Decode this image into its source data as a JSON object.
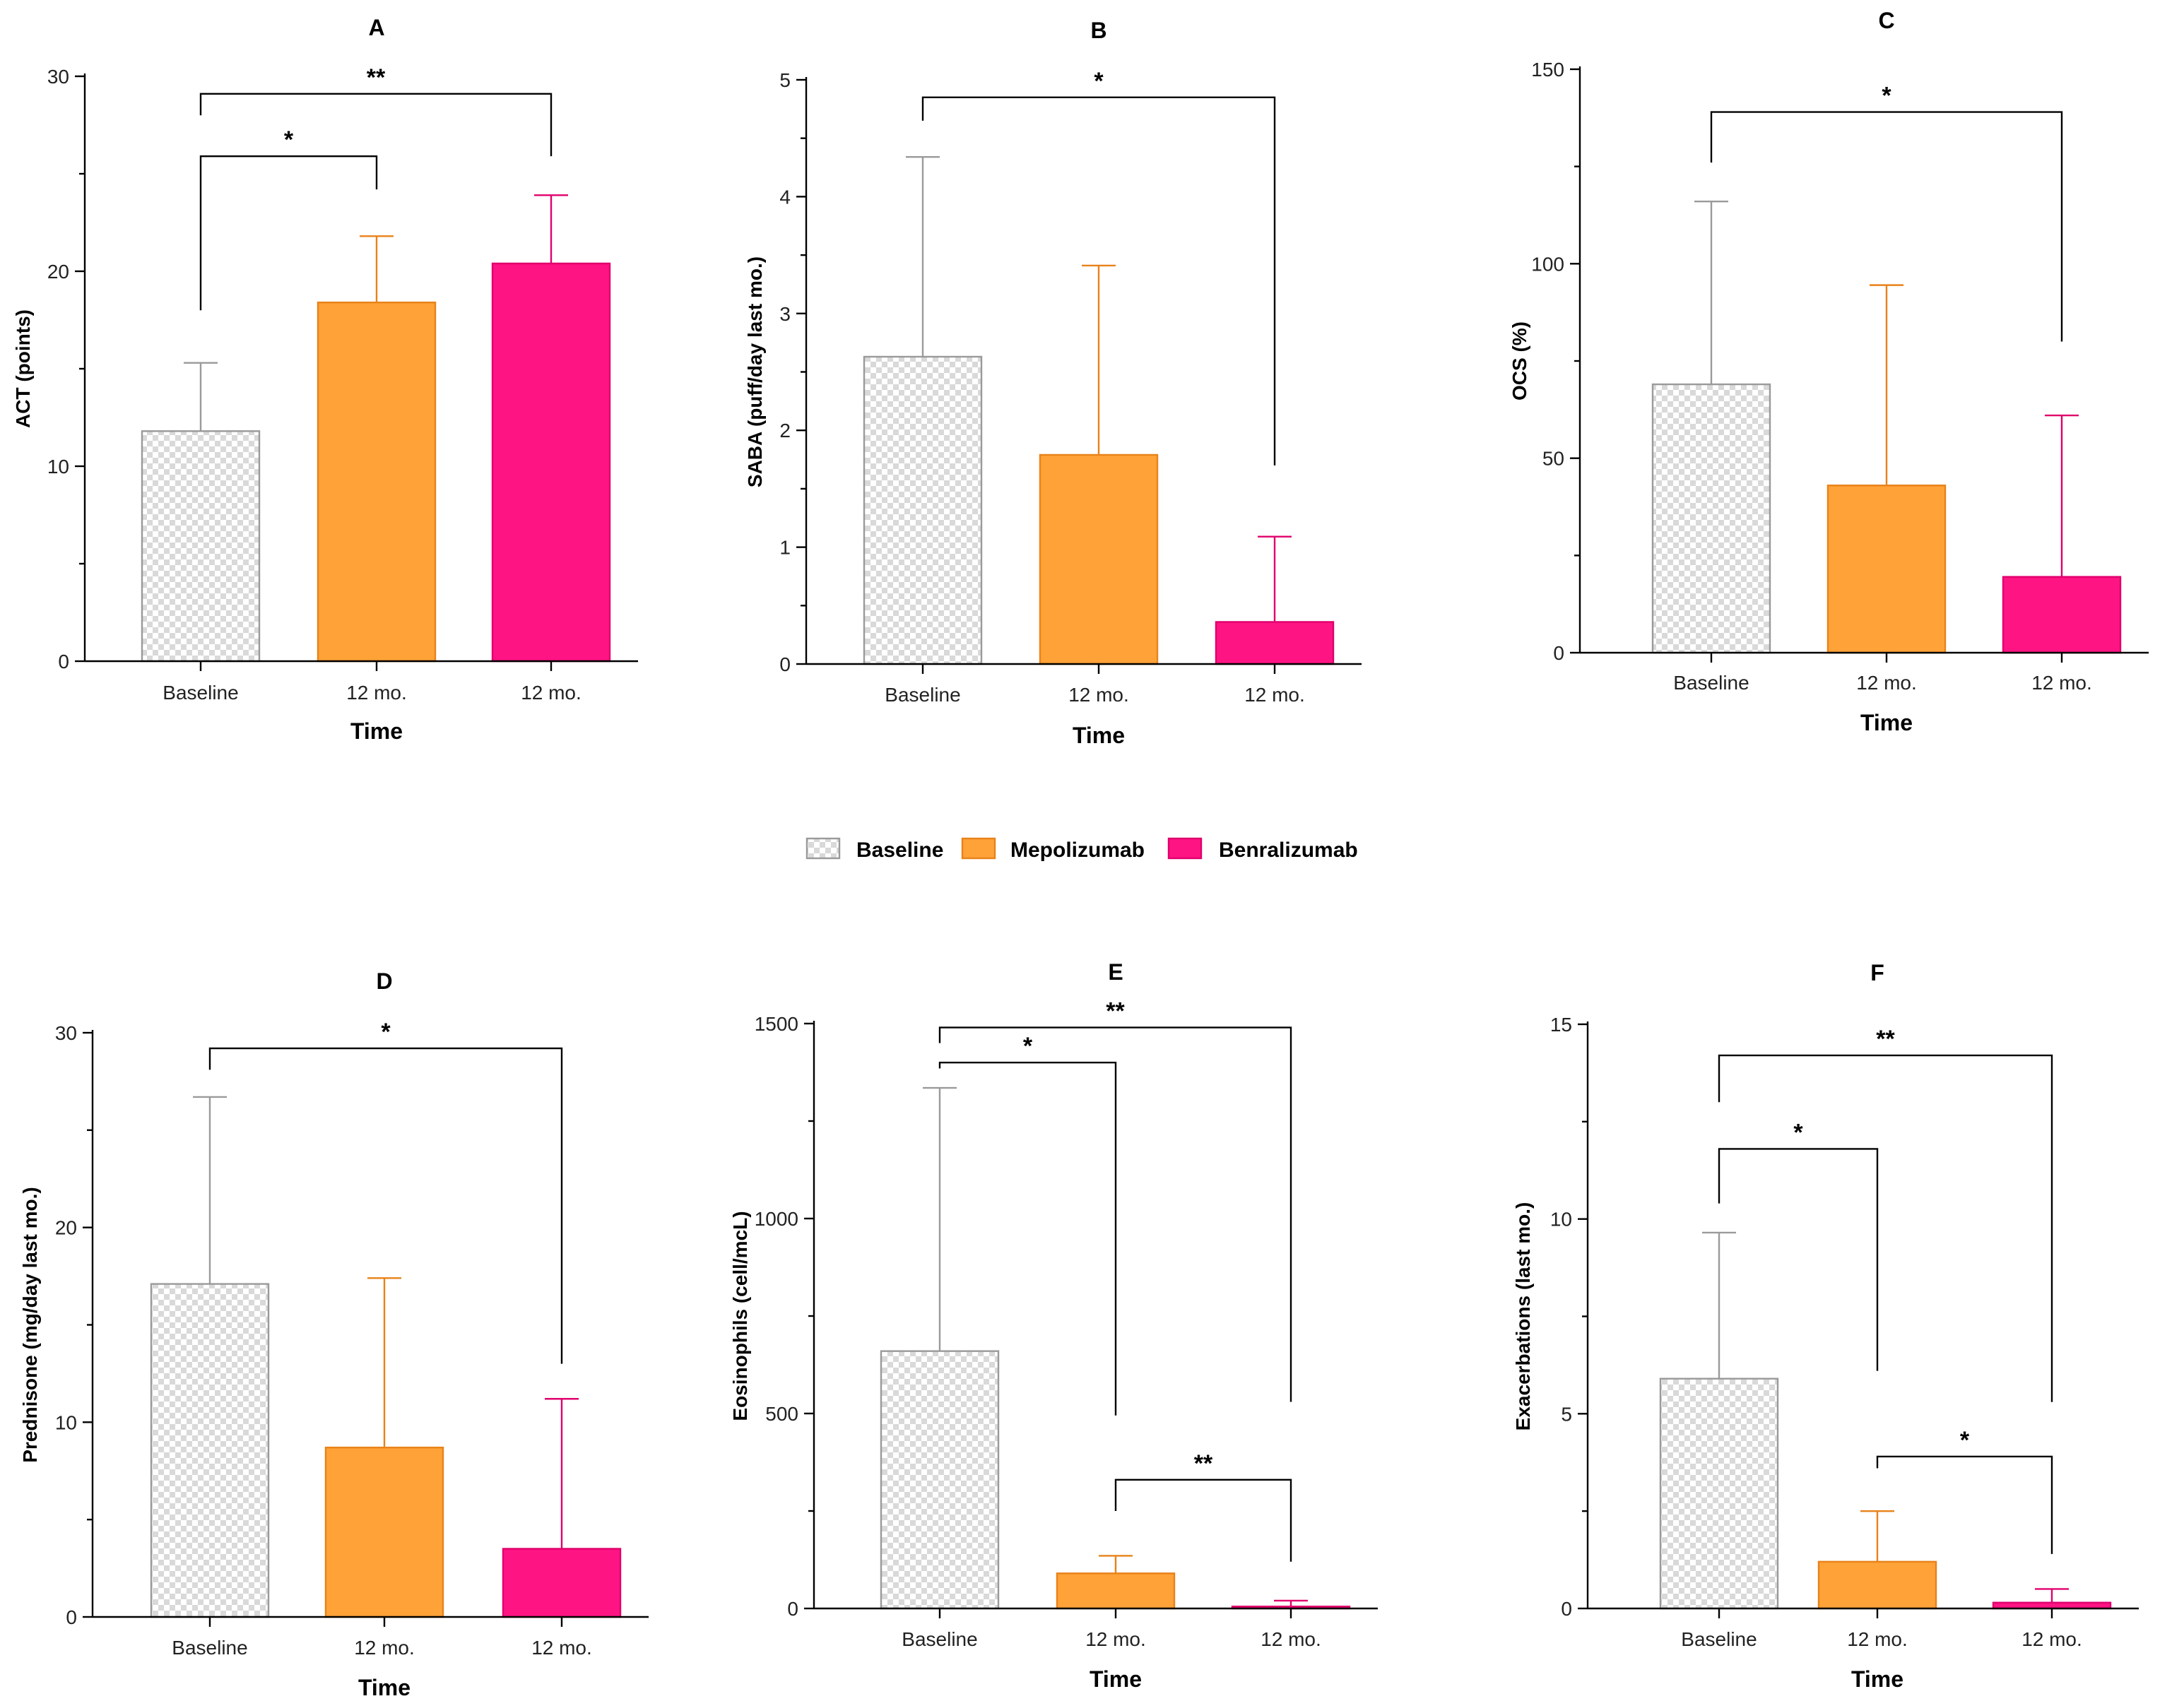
{
  "legend": [
    {
      "label": "Baseline",
      "key": "baseline"
    },
    {
      "label": "Mepolizumab",
      "key": "mepolizumab"
    },
    {
      "label": "Benralizumab",
      "key": "benralizumab"
    }
  ],
  "colors": {
    "baseline_fill": "#e6e6e6",
    "baseline_stroke": "#9a9a9a",
    "mepolizumab_fill": "#ffa238",
    "mepolizumab_stroke": "#e8821a",
    "benralizumab_fill": "#ff1483",
    "benralizumab_stroke": "#e0006c"
  },
  "chart_data": [
    {
      "type": "bar",
      "title": "A",
      "xlabel": "Time",
      "ylabel": "ACT (points)",
      "categories": [
        "Baseline",
        "12 mo.",
        "12 mo."
      ],
      "series_keys": [
        "baseline",
        "mepolizumab",
        "benralizumab"
      ],
      "values": [
        11.8,
        18.4,
        20.4
      ],
      "errors": [
        3.5,
        3.4,
        3.5
      ],
      "ylim": [
        0,
        30
      ],
      "major_ticks": [
        0,
        10,
        20,
        30
      ],
      "minor_ticks": [
        5,
        15,
        25
      ],
      "significance": [
        {
          "from": 0,
          "to": 1,
          "label": "*",
          "y": 25.9,
          "drop_left": 18.0,
          "drop_right": 24.2
        },
        {
          "from": 0,
          "to": 2,
          "label": "**",
          "y": 29.1,
          "drop_left": 28.0,
          "drop_right": 25.9
        }
      ]
    },
    {
      "type": "bar",
      "title": "B",
      "xlabel": "Time",
      "ylabel": "SABA (puff/day last mo.)",
      "categories": [
        "Baseline",
        "12 mo.",
        "12 mo."
      ],
      "series_keys": [
        "baseline",
        "mepolizumab",
        "benralizumab"
      ],
      "values": [
        2.63,
        1.79,
        0.36
      ],
      "errors": [
        1.71,
        1.62,
        0.73
      ],
      "ylim": [
        0,
        5
      ],
      "major_ticks": [
        0,
        1,
        2,
        3,
        4,
        5
      ],
      "minor_ticks": [
        0.5,
        1.5,
        2.5,
        3.5,
        4.5
      ],
      "significance": [
        {
          "from": 0,
          "to": 2,
          "label": "*",
          "y": 4.85,
          "drop_left": 4.65,
          "drop_right": 1.7
        }
      ]
    },
    {
      "type": "bar",
      "title": "C",
      "xlabel": "Time",
      "ylabel": "OCS (%)",
      "categories": [
        "Baseline",
        "12 mo.",
        "12 mo."
      ],
      "series_keys": [
        "baseline",
        "mepolizumab",
        "benralizumab"
      ],
      "values": [
        69,
        43,
        19.5
      ],
      "errors": [
        47,
        51.5,
        41.5
      ],
      "ylim": [
        0,
        150
      ],
      "major_ticks": [
        0,
        50,
        100,
        150
      ],
      "minor_ticks": [
        25,
        75,
        125
      ],
      "significance": [
        {
          "from": 0,
          "to": 2,
          "label": "*",
          "y": 139,
          "drop_left": 126,
          "drop_right": 80
        }
      ]
    },
    {
      "type": "bar",
      "title": "D",
      "xlabel": "Time",
      "ylabel": "Prednisone (mg/day last mo.)",
      "categories": [
        "Baseline",
        "12 mo.",
        "12 mo."
      ],
      "series_keys": [
        "baseline",
        "mepolizumab",
        "benralizumab"
      ],
      "values": [
        17.1,
        8.7,
        3.5
      ],
      "errors": [
        9.6,
        8.7,
        7.7
      ],
      "ylim": [
        0,
        30
      ],
      "major_ticks": [
        0,
        10,
        20,
        30
      ],
      "minor_ticks": [
        5,
        15,
        25
      ],
      "significance": [
        {
          "from": 0,
          "to": 2,
          "label": "*",
          "y": 29.2,
          "drop_left": 28.1,
          "drop_right": 13.0
        }
      ]
    },
    {
      "type": "bar",
      "title": "E",
      "xlabel": "Time",
      "ylabel": "Eosinophils (cell/mcL)",
      "categories": [
        "Baseline",
        "12 mo.",
        "12 mo."
      ],
      "series_keys": [
        "baseline",
        "mepolizumab",
        "benralizumab"
      ],
      "values": [
        660,
        90,
        5
      ],
      "errors": [
        675,
        45,
        15
      ],
      "ylim": [
        0,
        1500
      ],
      "major_ticks": [
        0,
        500,
        1000,
        1500
      ],
      "minor_ticks": [
        250,
        750,
        1250
      ],
      "significance": [
        {
          "from": 0,
          "to": 1,
          "label": "*",
          "y": 1400,
          "drop_left": 1385,
          "drop_right": 495
        },
        {
          "from": 0,
          "to": 2,
          "label": "**",
          "y": 1490,
          "drop_left": 1450,
          "drop_right": 530
        },
        {
          "from": 1,
          "to": 2,
          "label": "**",
          "y": 330,
          "drop_left": 250,
          "drop_right": 120
        }
      ]
    },
    {
      "type": "bar",
      "title": "F",
      "xlabel": "Time",
      "ylabel": "Exacerbations (last mo.)",
      "categories": [
        "Baseline",
        "12 mo.",
        "12 mo."
      ],
      "series_keys": [
        "baseline",
        "mepolizumab",
        "benralizumab"
      ],
      "values": [
        5.9,
        1.2,
        0.15
      ],
      "errors": [
        3.75,
        1.3,
        0.35
      ],
      "ylim": [
        0,
        15
      ],
      "major_ticks": [
        0,
        5,
        10,
        15
      ],
      "minor_ticks": [
        2.5,
        7.5,
        12.5
      ],
      "significance": [
        {
          "from": 0,
          "to": 1,
          "label": "*",
          "y": 11.8,
          "drop_left": 10.4,
          "drop_right": 6.1
        },
        {
          "from": 0,
          "to": 2,
          "label": "**",
          "y": 14.2,
          "drop_left": 13.0,
          "drop_right": 5.3
        },
        {
          "from": 1,
          "to": 2,
          "label": "*",
          "y": 3.9,
          "drop_left": 3.6,
          "drop_right": 1.4
        }
      ]
    }
  ]
}
